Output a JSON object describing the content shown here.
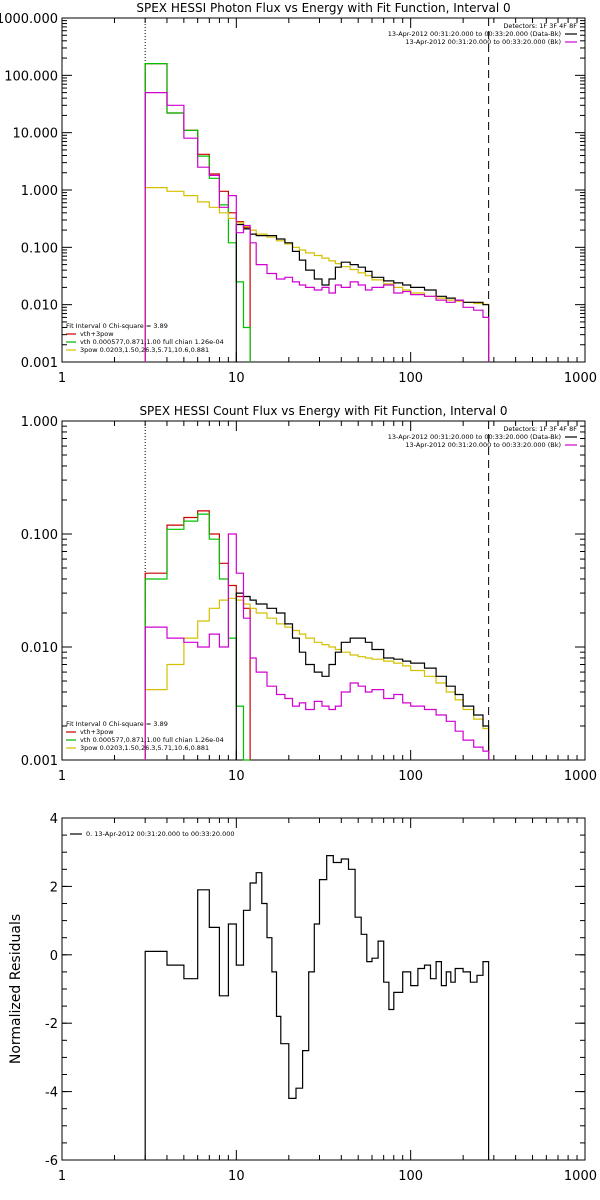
{
  "chart_data": [
    {
      "type": "line",
      "title": "SPEX HESSI Photon Flux vs Energy with Fit Function, Interval 0",
      "xlabel": "",
      "ylabel": "",
      "x_scale": "log",
      "y_scale": "log",
      "xlim": [
        1,
        1000
      ],
      "ylim": [
        0.001,
        1000
      ],
      "x_ticks": [
        {
          "v": 1,
          "label": "1"
        },
        {
          "v": 10,
          "label": "10"
        },
        {
          "v": 100,
          "label": "100"
        },
        {
          "v": 1000,
          "label": "1000"
        }
      ],
      "y_ticks": [
        {
          "v": 0.001,
          "label": "0.001"
        },
        {
          "v": 0.01,
          "label": "0.010"
        },
        {
          "v": 0.1,
          "label": "0.100"
        },
        {
          "v": 1,
          "label": "1.000"
        },
        {
          "v": 10,
          "label": "10.000"
        },
        {
          "v": 100,
          "label": "100.000"
        },
        {
          "v": 1000,
          "label": "1000.000"
        }
      ],
      "detectors_text": "Detectors: 1F 3F 4F 8F",
      "legend_top": [
        {
          "text": "13-Apr-2012 00:31:20.000 to 00:33:20.000 (Data-Bk)",
          "color": "#000000"
        },
        {
          "text": "13-Apr-2012 00:31:20.000 to 00:33:20.000 (Bk)",
          "color": "#d000d0"
        }
      ],
      "legend_bottom": [
        {
          "text": "Fit Interval 0   Chi-square = 3.89",
          "color": "#000000"
        },
        {
          "text": "vth+3pow",
          "color": "#cc0000"
        },
        {
          "text": "vth 0.000577,0.871,1.00  full chian 1.26e-04",
          "color": "#00b000"
        },
        {
          "text": "3pow 0.0203,1.50,26.3,5.71,10.6,0.881",
          "color": "#d4c000"
        }
      ],
      "vlines": [
        {
          "x": 3,
          "style": "dotted"
        },
        {
          "x": 280,
          "style": "dashed"
        }
      ],
      "series": [
        {
          "name": "vth+3pow",
          "color": "#cc0000",
          "edges": [
            3,
            4,
            5,
            6,
            7,
            8,
            9,
            10,
            11,
            12
          ],
          "values": [
            160,
            22,
            11,
            4.2,
            1.9,
            0.95,
            0.4,
            0.28,
            0.22
          ]
        },
        {
          "name": "vth",
          "color": "#00c000",
          "edges": [
            3,
            4,
            5,
            6,
            7,
            8,
            9,
            10,
            11,
            12
          ],
          "values": [
            160,
            22,
            11,
            3.9,
            1.6,
            0.55,
            0.12,
            0.025,
            0.004
          ]
        },
        {
          "name": "3pow",
          "color": "#d4c000",
          "edges": [
            3,
            4,
            5,
            6,
            7,
            8,
            9,
            10,
            11,
            12,
            13,
            15,
            17,
            19,
            21,
            23,
            25,
            28,
            31,
            34,
            37,
            40,
            45,
            50,
            55,
            60,
            70,
            80,
            90,
            100,
            120,
            140,
            160,
            180,
            200,
            230,
            260,
            280
          ],
          "values": [
            1.1,
            0.95,
            0.8,
            0.62,
            0.5,
            0.4,
            0.32,
            0.27,
            0.23,
            0.2,
            0.17,
            0.15,
            0.13,
            0.115,
            0.1,
            0.09,
            0.08,
            0.072,
            0.065,
            0.058,
            0.052,
            0.046,
            0.041,
            0.036,
            0.032,
            0.027,
            0.023,
            0.02,
            0.018,
            0.016,
            0.014,
            0.013,
            0.012,
            0.0115,
            0.011,
            0.0105,
            0.0101
          ]
        },
        {
          "name": "Data-Bk",
          "color": "#000000",
          "edges": [
            10,
            11,
            12,
            13,
            15,
            17,
            19,
            21,
            23,
            25,
            28,
            31,
            34,
            37,
            40,
            45,
            50,
            55,
            60,
            70,
            80,
            90,
            100,
            120,
            140,
            160,
            180,
            200,
            230,
            260,
            280
          ],
          "values": [
            0.25,
            0.21,
            0.17,
            0.16,
            0.16,
            0.14,
            0.12,
            0.085,
            0.06,
            0.04,
            0.028,
            0.022,
            0.028,
            0.045,
            0.055,
            0.05,
            0.045,
            0.038,
            0.03,
            0.026,
            0.024,
            0.022,
            0.02,
            0.018,
            0.014,
            0.013,
            0.012,
            0.011,
            0.011,
            0.01
          ]
        },
        {
          "name": "Bk",
          "color": "#d000d0",
          "edges": [
            3,
            4,
            5,
            6,
            7,
            8,
            9,
            10,
            11,
            12,
            13,
            15,
            17,
            19,
            21,
            23,
            25,
            28,
            31,
            34,
            37,
            40,
            45,
            50,
            55,
            60,
            70,
            80,
            90,
            100,
            120,
            140,
            160,
            180,
            200,
            230,
            260,
            280
          ],
          "values": [
            50,
            30,
            8,
            2.5,
            1.8,
            0.5,
            0.8,
            0.18,
            0.24,
            0.12,
            0.05,
            0.035,
            0.028,
            0.03,
            0.025,
            0.022,
            0.02,
            0.018,
            0.02,
            0.016,
            0.022,
            0.02,
            0.025,
            0.022,
            0.018,
            0.02,
            0.022,
            0.016,
            0.017,
            0.015,
            0.014,
            0.012,
            0.011,
            0.012,
            0.009,
            0.008,
            0.006
          ]
        }
      ]
    },
    {
      "type": "line",
      "title": "SPEX HESSI Count Flux vs Energy with Fit Function, Interval 0",
      "xlabel": "",
      "ylabel": "",
      "x_scale": "log",
      "y_scale": "log",
      "xlim": [
        1,
        1000
      ],
      "ylim": [
        0.001,
        1
      ],
      "x_ticks": [
        {
          "v": 1,
          "label": "1"
        },
        {
          "v": 10,
          "label": "10"
        },
        {
          "v": 100,
          "label": "100"
        },
        {
          "v": 1000,
          "label": "1000"
        }
      ],
      "y_ticks": [
        {
          "v": 0.001,
          "label": "0.001"
        },
        {
          "v": 0.01,
          "label": "0.010"
        },
        {
          "v": 0.1,
          "label": "0.100"
        },
        {
          "v": 1,
          "label": "1.000"
        }
      ],
      "detectors_text": "Detectors: 1F 3F 4F 8F",
      "legend_top": [
        {
          "text": "13-Apr-2012 00:31:20.000 to 00:33:20.000 (Data-Bk)",
          "color": "#000000"
        },
        {
          "text": "13-Apr-2012 00:31:20.000 to 00:33:20.000 (Bk)",
          "color": "#d000d0"
        }
      ],
      "legend_bottom": [
        {
          "text": "Fit Interval 0   Chi-square = 3.89",
          "color": "#000000"
        },
        {
          "text": "vth+3pow",
          "color": "#cc0000"
        },
        {
          "text": "vth 0.000577,0.871,1.00  full chian 1.26e-04",
          "color": "#00b000"
        },
        {
          "text": "3pow 0.0203,1.50,26.3,5.71,10.6,0.881",
          "color": "#d4c000"
        }
      ],
      "vlines": [
        {
          "x": 3,
          "style": "dotted"
        },
        {
          "x": 280,
          "style": "dashed"
        }
      ],
      "series": [
        {
          "name": "vth+3pow",
          "color": "#cc0000",
          "edges": [
            3,
            4,
            5,
            6,
            7,
            8,
            9,
            10,
            11,
            12
          ],
          "values": [
            0.045,
            0.12,
            0.14,
            0.16,
            0.1,
            0.055,
            0.035,
            0.028,
            0.022
          ]
        },
        {
          "name": "vth",
          "color": "#00c000",
          "edges": [
            3,
            4,
            5,
            6,
            7,
            8,
            9,
            10,
            11,
            12
          ],
          "values": [
            0.04,
            0.11,
            0.13,
            0.15,
            0.09,
            0.04,
            0.012,
            0.003,
            0.001
          ]
        },
        {
          "name": "3pow",
          "color": "#d4c000",
          "edges": [
            3,
            4,
            5,
            6,
            7,
            8,
            9,
            10,
            11,
            12,
            13,
            15,
            17,
            19,
            21,
            23,
            25,
            28,
            31,
            34,
            37,
            40,
            45,
            50,
            55,
            60,
            70,
            80,
            90,
            100,
            120,
            140,
            160,
            180,
            200,
            230,
            260,
            280
          ],
          "values": [
            0.0042,
            0.007,
            0.012,
            0.017,
            0.022,
            0.026,
            0.027,
            0.026,
            0.024,
            0.022,
            0.02,
            0.018,
            0.016,
            0.015,
            0.014,
            0.013,
            0.012,
            0.011,
            0.0105,
            0.01,
            0.0095,
            0.009,
            0.0085,
            0.0082,
            0.008,
            0.0078,
            0.0075,
            0.0072,
            0.0068,
            0.0062,
            0.0055,
            0.0048,
            0.004,
            0.0034,
            0.0028,
            0.0023,
            0.0019
          ]
        },
        {
          "name": "Data-Bk",
          "color": "#000000",
          "edges": [
            10,
            11,
            12,
            13,
            15,
            17,
            19,
            21,
            23,
            25,
            28,
            31,
            34,
            37,
            40,
            45,
            50,
            55,
            60,
            70,
            80,
            90,
            100,
            120,
            140,
            160,
            180,
            200,
            230,
            260,
            280
          ],
          "values": [
            0.03,
            0.028,
            0.026,
            0.024,
            0.022,
            0.02,
            0.016,
            0.012,
            0.009,
            0.007,
            0.006,
            0.0055,
            0.007,
            0.009,
            0.011,
            0.012,
            0.012,
            0.011,
            0.0095,
            0.008,
            0.0078,
            0.0075,
            0.0072,
            0.0065,
            0.0055,
            0.0045,
            0.0038,
            0.003,
            0.0025,
            0.002
          ]
        },
        {
          "name": "Bk",
          "color": "#d000d0",
          "edges": [
            3,
            4,
            5,
            6,
            7,
            8,
            9,
            10,
            11,
            12,
            13,
            15,
            17,
            19,
            21,
            23,
            25,
            28,
            31,
            34,
            37,
            40,
            45,
            50,
            55,
            60,
            70,
            80,
            90,
            100,
            120,
            140,
            160,
            180,
            200,
            230,
            260,
            280
          ],
          "values": [
            0.015,
            0.012,
            0.011,
            0.01,
            0.013,
            0.01,
            0.1,
            0.045,
            0.018,
            0.008,
            0.006,
            0.0045,
            0.0038,
            0.0035,
            0.003,
            0.0032,
            0.0028,
            0.0033,
            0.003,
            0.0028,
            0.003,
            0.004,
            0.0048,
            0.0045,
            0.004,
            0.0042,
            0.0035,
            0.0038,
            0.0032,
            0.003,
            0.0028,
            0.0025,
            0.0022,
            0.0018,
            0.0015,
            0.0013,
            0.0012
          ]
        }
      ]
    },
    {
      "type": "line",
      "title": "",
      "xlabel": "",
      "ylabel": "Normalized Residuals",
      "x_scale": "log",
      "y_scale": "linear",
      "xlim": [
        1,
        1000
      ],
      "ylim": [
        -6,
        4
      ],
      "x_ticks": [
        {
          "v": 1,
          "label": "1"
        },
        {
          "v": 10,
          "label": "10"
        },
        {
          "v": 100,
          "label": "100"
        },
        {
          "v": 1000,
          "label": "1000"
        }
      ],
      "y_ticks": [
        {
          "v": -6,
          "label": "-6"
        },
        {
          "v": -4,
          "label": "-4"
        },
        {
          "v": -2,
          "label": "-2"
        },
        {
          "v": 0,
          "label": "0"
        },
        {
          "v": 2,
          "label": "2"
        },
        {
          "v": 4,
          "label": "4"
        }
      ],
      "legend_top": [],
      "legend_bottom": [],
      "legend_left": [
        {
          "text": "0. 13-Apr-2012 00:31:20.000 to 00:33:20.000",
          "color": "#000000"
        }
      ],
      "vlines": [],
      "series": [
        {
          "name": "0. 13-Apr-2012 00:31:20.000 to 00:33:20.000",
          "color": "#000000",
          "edges": [
            3,
            4,
            5,
            6,
            7,
            8,
            9,
            10,
            11,
            12,
            13,
            14,
            15,
            16,
            17,
            18,
            20,
            22,
            24,
            26,
            28,
            30,
            33,
            36,
            40,
            44,
            48,
            52,
            56,
            60,
            65,
            70,
            75,
            80,
            90,
            100,
            110,
            120,
            130,
            140,
            150,
            160,
            170,
            180,
            200,
            220,
            240,
            260,
            280
          ],
          "values": [
            0.1,
            -0.3,
            -0.7,
            1.9,
            0.8,
            -1.2,
            0.9,
            -0.3,
            1.3,
            2.1,
            2.4,
            1.5,
            0.5,
            -0.5,
            -1.8,
            -2.6,
            -4.2,
            -3.9,
            -2.8,
            -0.5,
            0.9,
            2.2,
            2.9,
            2.7,
            2.8,
            2.5,
            1.1,
            0.6,
            -0.2,
            -0.1,
            0.4,
            -0.8,
            -1.6,
            -1.1,
            -0.5,
            -0.9,
            -0.4,
            -0.3,
            -0.7,
            -0.2,
            -0.9,
            -0.5,
            -0.8,
            -0.4,
            -0.5,
            -0.8,
            -0.6,
            -0.2
          ]
        }
      ],
      "line_color": "#000000"
    }
  ]
}
